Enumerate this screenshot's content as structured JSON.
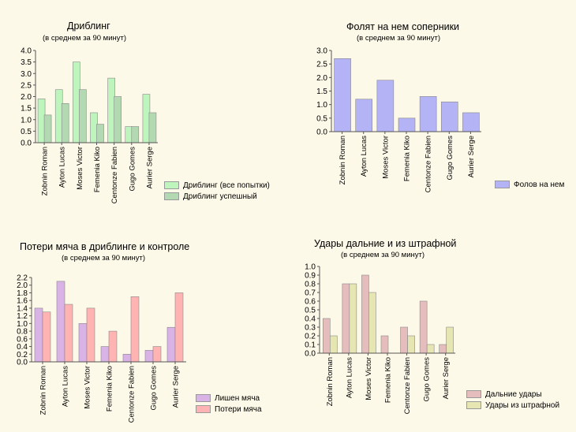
{
  "chart_data": [
    {
      "type": "bar",
      "title": "Дриблинг",
      "subtitle": "(в среднем за 90 минут)",
      "categories": [
        "Zobnin Roman",
        "Ayton Lucas",
        "Moses Victor",
        "Femenia Kiko",
        "Centonze Fabien",
        "Gugo Gomes",
        "Aurier Serge"
      ],
      "series": [
        {
          "name": "Дриблинг (все попытки)",
          "color": "#bdf5bd",
          "values": [
            1.9,
            2.3,
            3.5,
            1.3,
            2.8,
            0.7,
            2.1
          ]
        },
        {
          "name": "Дриблинг успешный",
          "color": "#b3d9b3",
          "values": [
            1.2,
            1.7,
            2.3,
            0.8,
            2.0,
            0.7,
            1.3
          ]
        }
      ],
      "ylim": [
        0,
        4.0
      ],
      "yticks": [
        "0.0",
        "0.5",
        "1.0",
        "1.5",
        "2.0",
        "2.5",
        "3.0",
        "3.5",
        "4.0"
      ],
      "grid": false,
      "legend_position": "bottom-right"
    },
    {
      "type": "bar",
      "title": "Фолят на нем соперники",
      "subtitle": "(в среднем за 90 минут)",
      "categories": [
        "Zobnin Roman",
        "Ayton Lucas",
        "Moses Victor",
        "Femenia Kiko",
        "Centonze Fabien",
        "Gugo Gomes",
        "Aurier Serge"
      ],
      "series": [
        {
          "name": "Фолов на нем",
          "color": "#b3b3f5",
          "values": [
            2.7,
            1.2,
            1.9,
            0.5,
            1.3,
            1.1,
            0.7
          ]
        }
      ],
      "ylim": [
        0,
        3.0
      ],
      "yticks": [
        "0.0",
        "0.5",
        "1.0",
        "1.5",
        "2.0",
        "2.5",
        "3.0"
      ],
      "grid": false,
      "legend_position": "bottom-right"
    },
    {
      "type": "bar",
      "title": "Потери мяча в дриблинге и контроле",
      "subtitle": "(в среднем за 90 минут)",
      "categories": [
        "Zobnin Roman",
        "Ayton Lucas",
        "Moses Victor",
        "Femenia Kiko",
        "Centonze Fabien",
        "Gugo Gomes",
        "Aurier Serge"
      ],
      "series": [
        {
          "name": "Лишен мяча",
          "color": "#d9b3e6",
          "values": [
            1.4,
            2.1,
            1.0,
            0.4,
            0.2,
            0.3,
            0.9
          ]
        },
        {
          "name": "Потери мяча",
          "color": "#ffb3b3",
          "values": [
            1.3,
            1.5,
            1.4,
            0.8,
            1.7,
            0.4,
            1.8
          ]
        }
      ],
      "ylim": [
        0,
        2.2
      ],
      "yticks": [
        "0.0",
        "0.2",
        "0.4",
        "0.6",
        "0.8",
        "1.0",
        "1.2",
        "1.4",
        "1.6",
        "1.8",
        "2.0",
        "2.2"
      ],
      "grid": false,
      "legend_position": "bottom-right"
    },
    {
      "type": "bar",
      "title": "Удары дальние и из штрафной",
      "subtitle": "(в среднем за 90 минут)",
      "categories": [
        "Zobnin Roman",
        "Ayton Lucas",
        "Moses Victor",
        "Femenia Kiko",
        "Centonze Fabien",
        "Gugo Gomes",
        "Aurier Serge"
      ],
      "series": [
        {
          "name": "Дальние удары",
          "color": "#e6bdbd",
          "values": [
            0.4,
            0.8,
            0.9,
            0.2,
            0.3,
            0.6,
            0.1
          ]
        },
        {
          "name": "Удары из штрафной",
          "color": "#e6e6b3",
          "values": [
            0.2,
            0.8,
            0.7,
            0.0,
            0.2,
            0.1,
            0.3
          ]
        }
      ],
      "ylim": [
        0,
        1.0
      ],
      "yticks": [
        "0.0",
        "0.1",
        "0.2",
        "0.3",
        "0.4",
        "0.5",
        "0.6",
        "0.7",
        "0.8",
        "0.9",
        "1.0"
      ],
      "grid": false,
      "legend_position": "bottom-right"
    }
  ]
}
